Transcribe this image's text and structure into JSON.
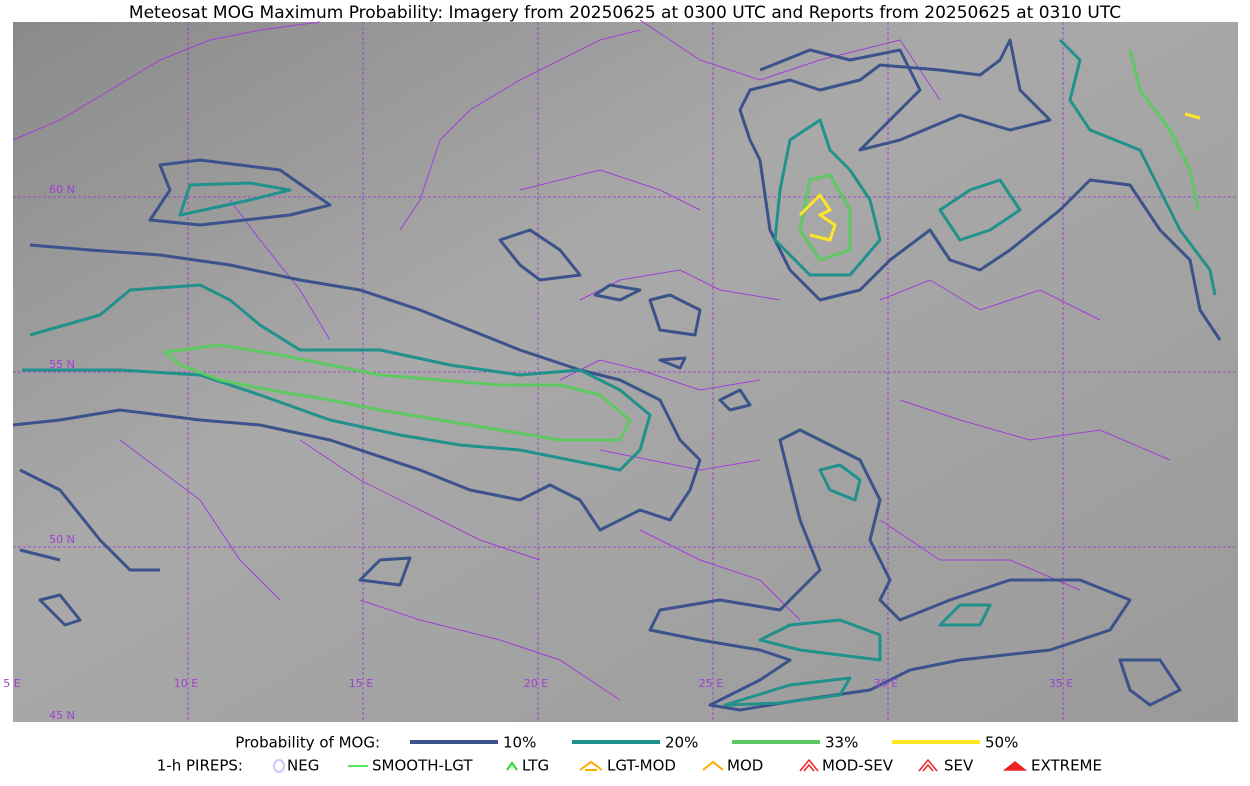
{
  "title": "Meteosat MOG Maximum Probability: Imagery from 20250625 at 0300 UTC and Reports from 20250625 at 0310 UTC",
  "grid_labels": {
    "lat": [
      "60 N",
      "55 N",
      "50 N",
      "45 N"
    ],
    "lon": [
      "5 E",
      "10 E",
      "15 E",
      "20 E",
      "25 E",
      "30 E",
      "35 E"
    ]
  },
  "legend": {
    "probability": {
      "label": "Probability of MOG:",
      "items": [
        {
          "label": "10%",
          "color": "#3b528b"
        },
        {
          "label": "20%",
          "color": "#21918c"
        },
        {
          "label": "33%",
          "color": "#5ec962"
        },
        {
          "label": "50%",
          "color": "#fde725"
        }
      ]
    },
    "pireps": {
      "label": "1-h PIREPS:",
      "items": [
        {
          "label": "NEG",
          "color": "#c8c8ff"
        },
        {
          "label": "SMOOTH-LGT",
          "color": "#22dd22"
        },
        {
          "label": "LTG",
          "color": "#22dd22"
        },
        {
          "label": "LGT-MOD",
          "color": "#ffaa00"
        },
        {
          "label": "MOD",
          "color": "#ffaa00"
        },
        {
          "label": "MOD-SEV",
          "color": "#ee2222"
        },
        {
          "label": "SEV",
          "color": "#ee2222"
        },
        {
          "label": "EXTREME",
          "color": "#ee2222"
        }
      ]
    }
  }
}
